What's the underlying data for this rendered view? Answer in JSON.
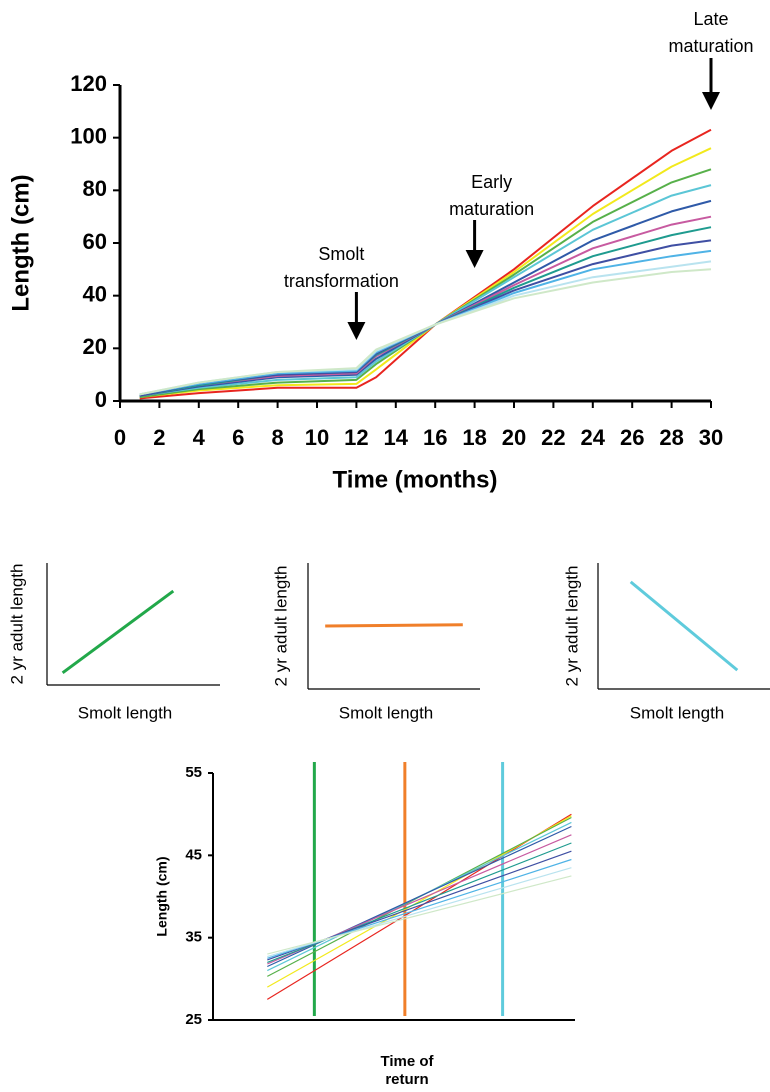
{
  "chart_data": [
    {
      "type": "line",
      "ylabel": "Length (cm)",
      "xlabel": "Time (months)",
      "x": [
        1,
        4,
        8,
        12,
        13,
        16,
        20,
        24,
        28,
        30
      ],
      "xlim": [
        0,
        30
      ],
      "xticks": [
        0,
        2,
        4,
        6,
        8,
        10,
        12,
        14,
        16,
        18,
        20,
        22,
        24,
        26,
        28,
        30
      ],
      "ylim": [
        0,
        120
      ],
      "yticks": [
        0,
        20,
        40,
        60,
        80,
        100,
        120
      ],
      "series": [
        {
          "color": "#e8251f",
          "values": [
            1,
            3,
            5,
            5,
            9,
            29,
            50,
            74,
            95,
            103
          ]
        },
        {
          "color": "#f2e91c",
          "values": [
            1.5,
            4,
            6,
            6.5,
            12,
            29,
            49,
            71,
            89,
            96
          ]
        },
        {
          "color": "#57b04a",
          "values": [
            1.5,
            4.5,
            7,
            8,
            14,
            29,
            48,
            68,
            83,
            88
          ]
        },
        {
          "color": "#5bc6d6",
          "values": [
            2,
            5,
            8,
            9,
            15,
            29,
            47,
            65,
            78,
            82
          ]
        },
        {
          "color": "#2f5aa8",
          "values": [
            2,
            5.5,
            9,
            10,
            16,
            29,
            45,
            61,
            72,
            76
          ]
        },
        {
          "color": "#c75aa0",
          "values": [
            2,
            6,
            9.5,
            10.5,
            17,
            29,
            44,
            58,
            67,
            70
          ]
        },
        {
          "color": "#1f9b8f",
          "values": [
            2,
            6,
            10,
            11,
            17.5,
            29,
            43,
            55,
            63,
            66
          ]
        },
        {
          "color": "#3f4fa3",
          "values": [
            2,
            6.5,
            10,
            11,
            18,
            29,
            42,
            52,
            59,
            61
          ]
        },
        {
          "color": "#4fb3e6",
          "values": [
            2.5,
            6.5,
            10.5,
            11.5,
            18.5,
            29,
            41,
            50,
            55,
            57
          ]
        },
        {
          "color": "#b9e3ef",
          "values": [
            2.5,
            7,
            11,
            12,
            19,
            29,
            40,
            47,
            51,
            53
          ]
        },
        {
          "color": "#cfe8c8",
          "values": [
            2.5,
            7,
            11,
            12.5,
            19.5,
            29,
            39,
            45,
            49,
            50
          ]
        }
      ],
      "annotations": [
        {
          "text": [
            "Smolt",
            "transformation"
          ],
          "x": 12
        },
        {
          "text": [
            "Early",
            "maturation"
          ],
          "x": 18
        },
        {
          "text": [
            "Late",
            "maturation"
          ],
          "x": 30
        }
      ]
    },
    {
      "type": "line",
      "ylabel": "2 yr adult length",
      "xlabel": "Smolt length",
      "x": [
        0.09,
        0.73
      ],
      "xlim": [
        0,
        1
      ],
      "ylim": [
        0,
        1
      ],
      "series": [
        {
          "color": "#22a84a",
          "values": [
            0.1,
            0.77
          ]
        }
      ]
    },
    {
      "type": "line",
      "ylabel": "2 yr adult length",
      "xlabel": "Smolt length",
      "x": [
        0.1,
        0.9
      ],
      "xlim": [
        0,
        1
      ],
      "ylim": [
        0,
        1
      ],
      "series": [
        {
          "color": "#f07f2a",
          "values": [
            0.5,
            0.51
          ]
        }
      ]
    },
    {
      "type": "line",
      "ylabel": "2 yr adult length",
      "xlabel": "Smolt length",
      "x": [
        0.19,
        0.81
      ],
      "xlim": [
        0,
        1
      ],
      "ylim": [
        0,
        1
      ],
      "series": [
        {
          "color": "#5fcbdc",
          "values": [
            0.85,
            0.15
          ]
        }
      ]
    },
    {
      "type": "line",
      "ylabel": "Length (cm)",
      "xlabel": [
        "Time of",
        "return"
      ],
      "x": [
        0.15,
        0.99
      ],
      "xlim": [
        0,
        1
      ],
      "ylim": [
        25,
        55
      ],
      "yticks": [
        25,
        35,
        45,
        55
      ],
      "series": [
        {
          "color": "#e8251f",
          "values": [
            27.5,
            50
          ]
        },
        {
          "color": "#f2e91c",
          "values": [
            29,
            49.8
          ]
        },
        {
          "color": "#57b04a",
          "values": [
            30.3,
            49.6
          ]
        },
        {
          "color": "#5bc6d6",
          "values": [
            31,
            49
          ]
        },
        {
          "color": "#2f5aa8",
          "values": [
            31.5,
            48.5
          ]
        },
        {
          "color": "#c75aa0",
          "values": [
            31.8,
            47.5
          ]
        },
        {
          "color": "#1f9b8f",
          "values": [
            32,
            46.5
          ]
        },
        {
          "color": "#3f4fa3",
          "values": [
            32.3,
            45.5
          ]
        },
        {
          "color": "#4fb3e6",
          "values": [
            32.5,
            44.5
          ]
        },
        {
          "color": "#b9e3ef",
          "values": [
            32.7,
            43.5
          ]
        },
        {
          "color": "#cfe8c8",
          "values": [
            33,
            42.5
          ]
        }
      ],
      "vlines": [
        {
          "x": 0.28,
          "color": "#22a84a"
        },
        {
          "x": 0.53,
          "color": "#f07f2a"
        },
        {
          "x": 0.8,
          "color": "#5fcbdc"
        }
      ]
    }
  ]
}
